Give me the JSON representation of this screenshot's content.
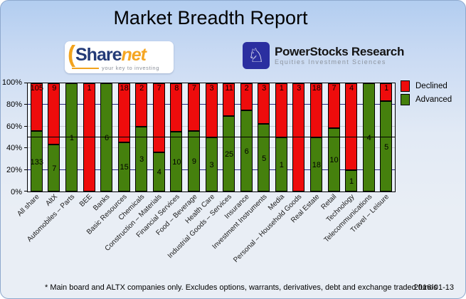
{
  "title": "Market Breadth Report",
  "logos": {
    "sharenet": {
      "paren": "(",
      "text_share": "Share",
      "text_net": "net",
      "tagline": "your key to investing"
    },
    "powerstocks": {
      "knight_icon": "♘",
      "name": "PowerStocks  Research",
      "subtitle": "Equities Investment Sciences"
    }
  },
  "legend": [
    {
      "label": "Declined",
      "color": "#ee0c0c"
    },
    {
      "label": "Advanced",
      "color": "#45800d"
    }
  ],
  "footer": {
    "note": "* Main board and ALTX companies only. Excludes options, warrants, derivatives, debt and exchange traded funds",
    "date": "2016-01-13"
  },
  "chart_data": {
    "type": "bar",
    "stacked": true,
    "stack_mode": "percent",
    "title": "Market Breadth Report",
    "xlabel": "",
    "ylabel": "",
    "ylim": [
      0,
      100
    ],
    "y_tick_labels": [
      "0%",
      "20%",
      "40%",
      "60%",
      "80%",
      "100%"
    ],
    "reference_line_pct": 50,
    "legend_position": "top-right",
    "categories": [
      "All share",
      "AltX",
      "Automobiles – Parts",
      "BEE",
      "Banks",
      "Basic Resources",
      "Chemicals",
      "Construction – Materials",
      "Financial Services",
      "Food – Beverage",
      "Health Care",
      "Industrial Goods – Services",
      "Insurance",
      "Investment Instruments",
      "Media",
      "Personal – Household Goods",
      "Real Estate",
      "Retail",
      "Technology",
      "Telecommunications",
      "Travel – Leisure"
    ],
    "series": [
      {
        "name": "Declined",
        "color": "#ee0c0c",
        "values": [
          105,
          9,
          0,
          1,
          0,
          18,
          2,
          7,
          8,
          7,
          3,
          11,
          2,
          3,
          1,
          3,
          18,
          7,
          4,
          0,
          1
        ]
      },
      {
        "name": "Advanced",
        "color": "#45800d",
        "values": [
          133,
          7,
          1,
          0,
          6,
          15,
          3,
          4,
          10,
          9,
          3,
          25,
          6,
          5,
          1,
          0,
          18,
          10,
          1,
          4,
          5
        ]
      }
    ],
    "gridlines": [
      {
        "pct": 20,
        "color": "#2a2a7e"
      },
      {
        "pct": 40,
        "color": "#c9cdd4"
      },
      {
        "pct": 60,
        "color": "#c9cdd4"
      },
      {
        "pct": 80,
        "color": "#2a2a7e"
      }
    ]
  }
}
